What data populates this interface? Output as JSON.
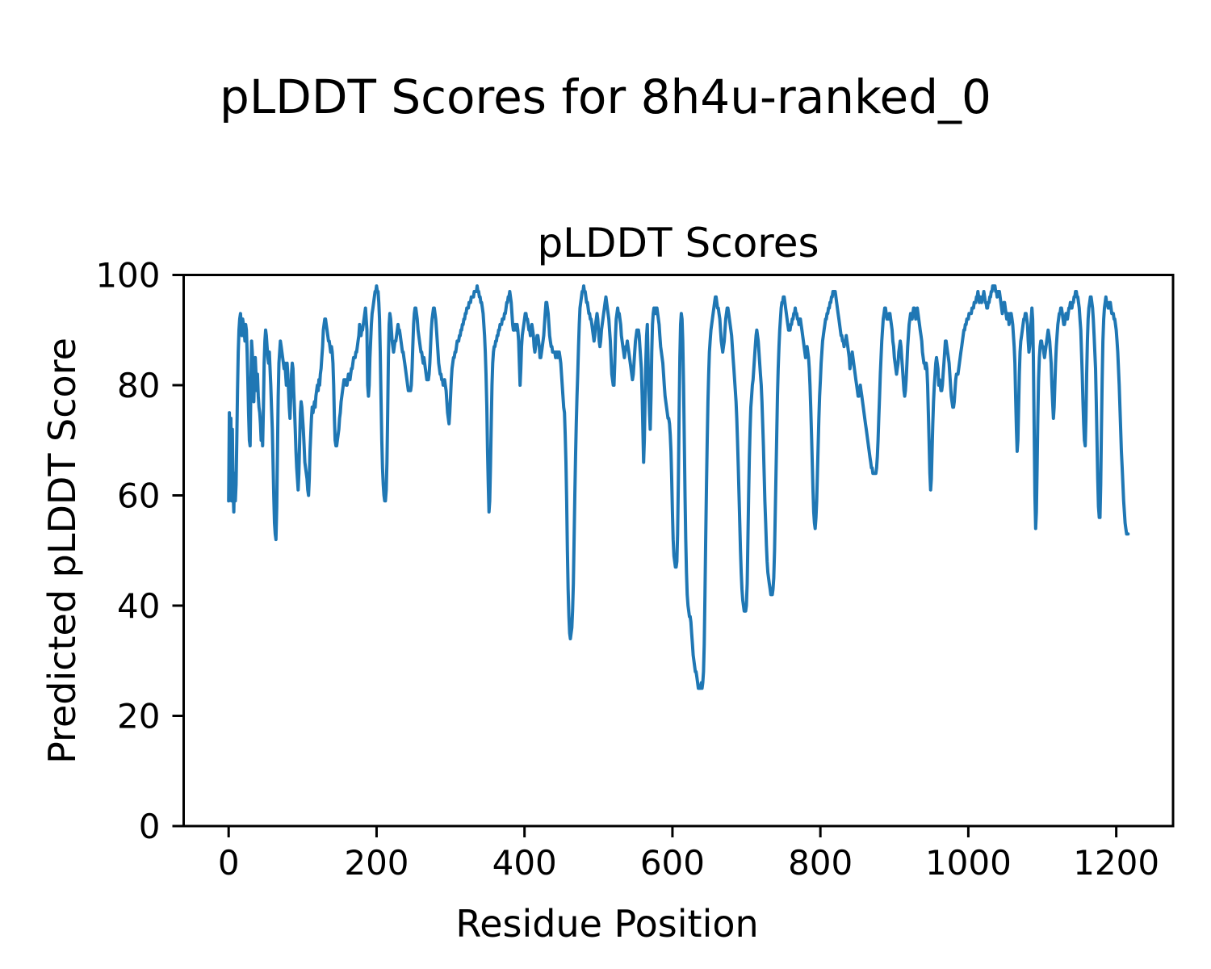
{
  "figure": {
    "suptitle": "pLDDT Scores for 8h4u-ranked_0",
    "background_color": "#ffffff",
    "text_color": "#000000"
  },
  "chart_data": {
    "type": "line",
    "title": "pLDDT Scores",
    "xlabel": "Residue Position",
    "ylabel": "Predicted pLDDT Score",
    "x_ticks": [
      0,
      200,
      400,
      600,
      800,
      1000,
      1200
    ],
    "y_ticks": [
      0,
      20,
      40,
      60,
      80,
      100
    ],
    "xlim": [
      -60.8,
      1276.8
    ],
    "ylim": [
      0,
      100
    ],
    "grid": false,
    "legend_position": "none",
    "line_color": "#1f77b4",
    "axis_color": "#000000",
    "series": [
      {
        "name": "pLDDT",
        "x_start": 0,
        "x_step": 1,
        "values": [
          59,
          75,
          60,
          74,
          59,
          72,
          61,
          57,
          64,
          59,
          62,
          70,
          79,
          86,
          90,
          92,
          93,
          91,
          89,
          92,
          91,
          90,
          88,
          91,
          90,
          86,
          81,
          75,
          70,
          69,
          79,
          88,
          86,
          83,
          77,
          82,
          85,
          82,
          79,
          82,
          78,
          76,
          75,
          73,
          70,
          72,
          69,
          76,
          84,
          88,
          90,
          89,
          87,
          85,
          84,
          86,
          83,
          80,
          76,
          72,
          66,
          60,
          55,
          53,
          52,
          58,
          68,
          78,
          84,
          86,
          88,
          87,
          86,
          85,
          84,
          83,
          84,
          82,
          80,
          84,
          82,
          79,
          76,
          74,
          78,
          82,
          84,
          83,
          79,
          76,
          72,
          68,
          65,
          63,
          61,
          64,
          70,
          75,
          77,
          76,
          74,
          72,
          69,
          66,
          65,
          64,
          63,
          61,
          60,
          63,
          68,
          71,
          74,
          76,
          75,
          76,
          77,
          76,
          78,
          79,
          80,
          79,
          81,
          80,
          82,
          83,
          85,
          87,
          90,
          91,
          92,
          92,
          91,
          90,
          89,
          88,
          88,
          87,
          86,
          87,
          86,
          84,
          80,
          74,
          70,
          69,
          69,
          70,
          71,
          72,
          74,
          75,
          77,
          78,
          79,
          80,
          81,
          81,
          81,
          80,
          80,
          81,
          82,
          82,
          81,
          82,
          83,
          83,
          84,
          85,
          85,
          85,
          86,
          86,
          87,
          88,
          89,
          91,
          90,
          89,
          90,
          90,
          91,
          92,
          93,
          94,
          92,
          90,
          80,
          78,
          80,
          85,
          88,
          91,
          93,
          94,
          95,
          96,
          97,
          97,
          98,
          97,
          97,
          95,
          92,
          86,
          78,
          70,
          65,
          62,
          60,
          59,
          59,
          61,
          66,
          75,
          85,
          91,
          93,
          92,
          90,
          88,
          87,
          86,
          87,
          88,
          88,
          89,
          90,
          91,
          90,
          90,
          89,
          88,
          87,
          86,
          86,
          85,
          84,
          83,
          82,
          81,
          80,
          79,
          79,
          79,
          79,
          80,
          83,
          87,
          91,
          93,
          94,
          94,
          93,
          92,
          90,
          89,
          88,
          87,
          86,
          86,
          85,
          84,
          85,
          84,
          83,
          82,
          81,
          81,
          81,
          82,
          84,
          87,
          90,
          92,
          93,
          94,
          94,
          93,
          92,
          90,
          88,
          86,
          84,
          83,
          82,
          82,
          81,
          81,
          80,
          80,
          81,
          80,
          79,
          77,
          75,
          74,
          73,
          75,
          78,
          81,
          83,
          84,
          85,
          85,
          86,
          86,
          87,
          88,
          88,
          88,
          89,
          89,
          90,
          90,
          91,
          91,
          92,
          92,
          93,
          93,
          94,
          94,
          94,
          95,
          95,
          95,
          96,
          96,
          96,
          96,
          97,
          97,
          97,
          97,
          98,
          97,
          97,
          96,
          96,
          95,
          95,
          94,
          93,
          91,
          89,
          86,
          82,
          76,
          68,
          62,
          57,
          59,
          65,
          73,
          80,
          84,
          86,
          87,
          87,
          88,
          88,
          89,
          89,
          90,
          90,
          91,
          91,
          91,
          92,
          92,
          92,
          93,
          93,
          94,
          95,
          95,
          96,
          96,
          97,
          96,
          95,
          93,
          91,
          90,
          90,
          91,
          91,
          90,
          91,
          90,
          88,
          84,
          80,
          83,
          87,
          89,
          90,
          91,
          92,
          93,
          93,
          92,
          92,
          91,
          90,
          90,
          89,
          90,
          91,
          90,
          89,
          87,
          86,
          87,
          88,
          89,
          89,
          88,
          87,
          85,
          85,
          86,
          87,
          88,
          89,
          91,
          93,
          95,
          95,
          94,
          93,
          91,
          89,
          88,
          87,
          87,
          86,
          86,
          86,
          86,
          85,
          86,
          86,
          85,
          86,
          86,
          85,
          84,
          82,
          80,
          78,
          76,
          75,
          71,
          66,
          59,
          50,
          43,
          38,
          35,
          34,
          35,
          36,
          39,
          44,
          52,
          60,
          67,
          73,
          78,
          82,
          87,
          91,
          94,
          95,
          96,
          97,
          97,
          98,
          97,
          97,
          96,
          95,
          95,
          94,
          93,
          93,
          92,
          92,
          91,
          90,
          89,
          88,
          89,
          91,
          92,
          93,
          92,
          90,
          88,
          87,
          88,
          90,
          91,
          92,
          93,
          94,
          95,
          96,
          95,
          94,
          93,
          92,
          90,
          88,
          85,
          82,
          81,
          80,
          80,
          84,
          89,
          92,
          93,
          94,
          93,
          93,
          92,
          91,
          89,
          88,
          87,
          86,
          85,
          86,
          87,
          87,
          88,
          87,
          86,
          85,
          84,
          83,
          82,
          81,
          82,
          84,
          86,
          88,
          89,
          90,
          90,
          90,
          89,
          87,
          85,
          83,
          78,
          72,
          66,
          70,
          77,
          84,
          89,
          91,
          85,
          79,
          75,
          72,
          78,
          86,
          91,
          93,
          94,
          93,
          94,
          93,
          94,
          93,
          92,
          91,
          89,
          87,
          86,
          85,
          84,
          82,
          80,
          78,
          77,
          76,
          75,
          74,
          74,
          73,
          71,
          68,
          63,
          57,
          52,
          49,
          48,
          47,
          47,
          48,
          53,
          63,
          75,
          85,
          91,
          93,
          92,
          88,
          80,
          70,
          60,
          52,
          46,
          42,
          40,
          39,
          38,
          38,
          37,
          35,
          33,
          31,
          30,
          29,
          28,
          28,
          27,
          26,
          25,
          25,
          25,
          25,
          26,
          25,
          26,
          28,
          33,
          42,
          52,
          62,
          70,
          77,
          82,
          86,
          88,
          90,
          91,
          92,
          93,
          94,
          95,
          96,
          96,
          95,
          94,
          94,
          93,
          92,
          90,
          88,
          87,
          86,
          87,
          88,
          90,
          92,
          93,
          94,
          94,
          93,
          92,
          91,
          90,
          89,
          87,
          85,
          83,
          81,
          79,
          77,
          74,
          70,
          65,
          60,
          55,
          50,
          46,
          43,
          41,
          40,
          39,
          39,
          39,
          40,
          44,
          52,
          60,
          67,
          72,
          76,
          78,
          80,
          81,
          83,
          85,
          87,
          89,
          90,
          89,
          88,
          86,
          84,
          82,
          80,
          77,
          73,
          69,
          64,
          59,
          55,
          51,
          48,
          46,
          45,
          44,
          43,
          42,
          42,
          42,
          43,
          45,
          50,
          57,
          64,
          71,
          78,
          83,
          87,
          90,
          92,
          94,
          95,
          95,
          96,
          96,
          95,
          94,
          93,
          92,
          91,
          90,
          90,
          90,
          91,
          91,
          92,
          92,
          93,
          93,
          94,
          93,
          93,
          92,
          92,
          91,
          92,
          92,
          91,
          90,
          89,
          88,
          87,
          86,
          85,
          86,
          87,
          86,
          85,
          83,
          80,
          76,
          71,
          66,
          61,
          57,
          55,
          54,
          56,
          59,
          64,
          69,
          74,
          78,
          81,
          84,
          86,
          88,
          89,
          90,
          91,
          92,
          92,
          93,
          93,
          94,
          94,
          95,
          95,
          96,
          96,
          97,
          97,
          97,
          97,
          96,
          95,
          94,
          93,
          92,
          91,
          90,
          89,
          89,
          88,
          88,
          87,
          88,
          88,
          89,
          88,
          87,
          86,
          85,
          83,
          84,
          85,
          86,
          85,
          84,
          83,
          82,
          81,
          80,
          79,
          78,
          78,
          79,
          80,
          79,
          78,
          77,
          76,
          75,
          74,
          73,
          72,
          71,
          70,
          69,
          68,
          67,
          66,
          65,
          65,
          64,
          64,
          64,
          64,
          64,
          65,
          67,
          70,
          74,
          78,
          82,
          85,
          88,
          90,
          92,
          93,
          94,
          94,
          93,
          92,
          92,
          92,
          93,
          93,
          92,
          91,
          90,
          88,
          87,
          85,
          84,
          83,
          82,
          83,
          84,
          86,
          87,
          88,
          87,
          85,
          83,
          81,
          79,
          78,
          79,
          81,
          84,
          87,
          89,
          91,
          92,
          93,
          93,
          92,
          93,
          94,
          94,
          93,
          92,
          93,
          94,
          93,
          92,
          91,
          90,
          89,
          88,
          86,
          85,
          84,
          84,
          83,
          84,
          83,
          80,
          75,
          70,
          64,
          61,
          63,
          68,
          73,
          77,
          80,
          82,
          84,
          85,
          84,
          83,
          80,
          81,
          80,
          79,
          79,
          80,
          82,
          84,
          86,
          88,
          88,
          87,
          86,
          85,
          84,
          82,
          80,
          78,
          77,
          76,
          76,
          77,
          79,
          81,
          82,
          82,
          82,
          83,
          84,
          85,
          86,
          87,
          88,
          89,
          90,
          90,
          91,
          91,
          92,
          92,
          92,
          93,
          93,
          93,
          93,
          94,
          94,
          94,
          95,
          95,
          95,
          96,
          96,
          97,
          96,
          95,
          96,
          96,
          95,
          96,
          96,
          97,
          96,
          95,
          95,
          94,
          94,
          95,
          95,
          96,
          96,
          97,
          97,
          98,
          98,
          98,
          98,
          97,
          97,
          96,
          97,
          97,
          97,
          96,
          95,
          94,
          93,
          94,
          95,
          95,
          94,
          93,
          92,
          92,
          93,
          91,
          92,
          93,
          93,
          92,
          91,
          89,
          87,
          84,
          78,
          72,
          68,
          70,
          76,
          82,
          86,
          88,
          89,
          90,
          91,
          92,
          92,
          93,
          93,
          92,
          91,
          88,
          86,
          87,
          89,
          92,
          94,
          92,
          85,
          73,
          60,
          54,
          57,
          65,
          74,
          81,
          85,
          87,
          88,
          88,
          87,
          87,
          86,
          85,
          86,
          87,
          88,
          89,
          90,
          89,
          88,
          86,
          84,
          80,
          77,
          74,
          76,
          80,
          84,
          87,
          89,
          91,
          92,
          93,
          93,
          94,
          94,
          93,
          92,
          91,
          91,
          92,
          93,
          93,
          92,
          93,
          94,
          94,
          95,
          94,
          94,
          95,
          95,
          96,
          96,
          97,
          97,
          96,
          96,
          95,
          94,
          92,
          90,
          86,
          82,
          77,
          73,
          70,
          69,
          74,
          82,
          88,
          92,
          94,
          95,
          96,
          96,
          95,
          94,
          92,
          89,
          86,
          83,
          77,
          70,
          63,
          58,
          56,
          56,
          62,
          72,
          81,
          88,
          92,
          94,
          95,
          96,
          95,
          95,
          94,
          94,
          95,
          95,
          94,
          93,
          93,
          93,
          92,
          92,
          91,
          90,
          88,
          86,
          83,
          80,
          76,
          72,
          68,
          65,
          62,
          59,
          57,
          55,
          54,
          53,
          53,
          53
        ]
      }
    ]
  }
}
